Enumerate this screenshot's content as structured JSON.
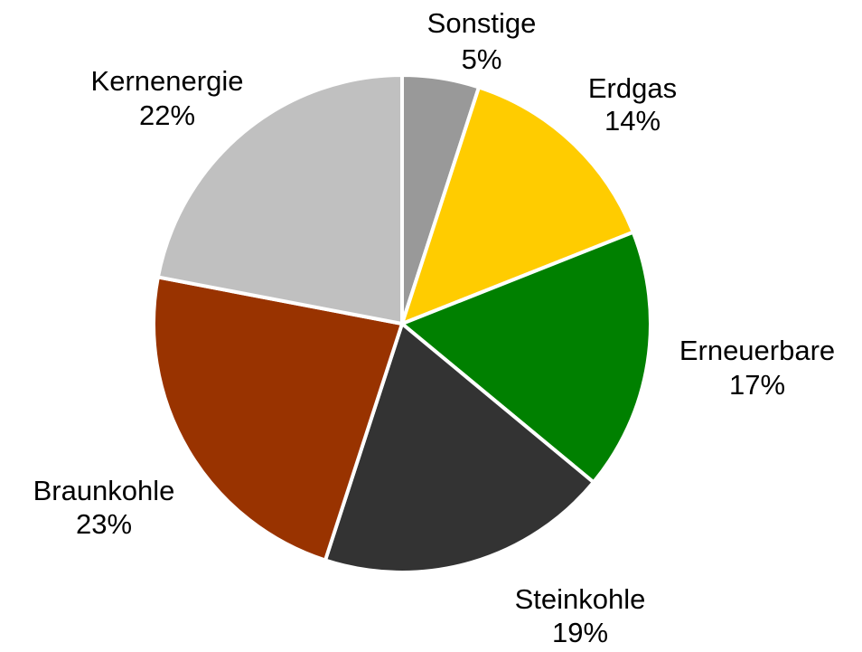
{
  "chart_data": {
    "type": "pie",
    "categories": [
      "Sonstige",
      "Erdgas",
      "Erneuerbare",
      "Steinkohle",
      "Braunkohle",
      "Kernenergie"
    ],
    "values": [
      5,
      14,
      17,
      19,
      23,
      22
    ],
    "value_labels": [
      "5%",
      "14%",
      "17%",
      "19%",
      "23%",
      "22%"
    ],
    "colors": [
      "#999999",
      "#ffcc00",
      "#008000",
      "#333333",
      "#993300",
      "#c0c0c0"
    ]
  }
}
